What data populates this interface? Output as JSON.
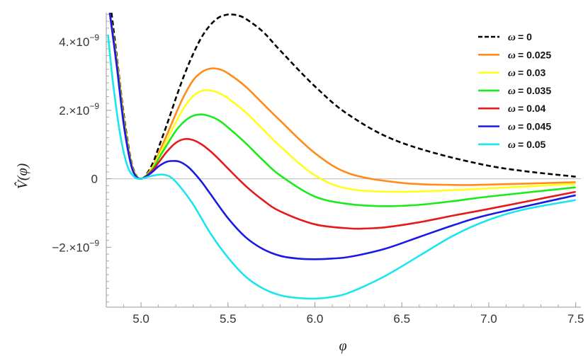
{
  "chart_data": {
    "type": "line",
    "title": "",
    "xlabel": "φ",
    "ylabel": "V̂(φ)",
    "xlim": [
      4.8,
      7.53
    ],
    "ylim": [
      -3.75e-09,
      4.85e-09
    ],
    "x_ticks": [
      {
        "value": 5.0,
        "label": "5.0"
      },
      {
        "value": 5.5,
        "label": "5.5"
      },
      {
        "value": 6.0,
        "label": "6.0"
      },
      {
        "value": 6.5,
        "label": "6.5"
      },
      {
        "value": 7.0,
        "label": "7.0"
      },
      {
        "value": 7.5,
        "label": "7.5"
      }
    ],
    "y_ticks": [
      {
        "value": 4e-09,
        "mantissa": "4.×10",
        "exponent": "−9"
      },
      {
        "value": 2e-09,
        "mantissa": "2.×10",
        "exponent": "−9"
      },
      {
        "value": 0,
        "mantissa": "0",
        "exponent": ""
      },
      {
        "value": -2e-09,
        "mantissa": "−2.×10",
        "exponent": "−9"
      }
    ],
    "grid": false,
    "legend_position": "top-right",
    "series": [
      {
        "name": "ω = 0",
        "symbol": "ω",
        "value": "= 0",
        "color": "#000000",
        "dashed": true,
        "x": [
          4.83,
          4.86,
          4.9,
          4.94,
          4.97,
          5.0,
          5.03,
          5.07,
          5.1,
          5.15,
          5.2,
          5.25,
          5.3,
          5.35,
          5.4,
          5.45,
          5.5,
          5.52,
          5.55,
          5.6,
          5.7,
          5.8,
          6.0,
          6.2,
          6.5,
          7.0,
          7.5
        ],
        "y": [
          4.85e-09,
          3.6e-09,
          1.9e-09,
          6e-10,
          1.2e-10,
          0,
          1.2e-10,
          4.8e-10,
          9e-10,
          1.6e-09,
          2.35e-09,
          3.05e-09,
          3.65e-09,
          4.15e-09,
          4.5e-09,
          4.72e-09,
          4.8e-09,
          4.8e-09,
          4.78e-09,
          4.68e-09,
          4.3e-09,
          3.75e-09,
          2.7e-09,
          1.85e-09,
          1.05e-09,
          3.8e-10,
          6e-11
        ]
      },
      {
        "name": "ω = 0.025",
        "symbol": "ω",
        "value": "= 0.025",
        "color": "#ff8c1a",
        "dashed": false,
        "x": [
          4.82,
          4.86,
          4.9,
          4.94,
          4.97,
          5.0,
          5.03,
          5.07,
          5.1,
          5.15,
          5.2,
          5.25,
          5.3,
          5.35,
          5.4,
          5.45,
          5.5,
          5.6,
          5.7,
          5.8,
          6.0,
          6.2,
          6.5,
          6.8,
          7.0,
          7.5
        ],
        "y": [
          4.85e-09,
          3.5e-09,
          1.8e-09,
          5.5e-10,
          1e-10,
          0,
          1e-10,
          3.8e-10,
          7.2e-10,
          1.3e-09,
          1.9e-09,
          2.45e-09,
          2.88e-09,
          3.12e-09,
          3.22e-09,
          3.2e-09,
          3.08e-09,
          2.7e-09,
          2.2e-09,
          1.7e-09,
          7.5e-10,
          1.5e-10,
          -1.2e-10,
          -1.8e-10,
          -1.7e-10,
          -1e-10
        ]
      },
      {
        "name": "ω = 0.03",
        "symbol": "ω",
        "value": "= 0.03",
        "color": "#ffff1a",
        "dashed": false,
        "x": [
          4.82,
          4.86,
          4.9,
          4.94,
          4.97,
          5.0,
          5.03,
          5.07,
          5.1,
          5.15,
          5.2,
          5.25,
          5.3,
          5.35,
          5.4,
          5.45,
          5.5,
          5.6,
          5.7,
          5.8,
          6.0,
          6.2,
          6.5,
          6.8,
          7.0,
          7.5
        ],
        "y": [
          4.85e-09,
          3.45e-09,
          1.75e-09,
          5.3e-10,
          1e-10,
          0,
          1e-10,
          3.5e-10,
          6.5e-10,
          1.15e-09,
          1.65e-09,
          2.1e-09,
          2.42e-09,
          2.57e-09,
          2.58e-09,
          2.5e-09,
          2.35e-09,
          1.95e-09,
          1.45e-09,
          9.5e-10,
          1e-10,
          -3e-10,
          -3.8e-10,
          -3.3e-10,
          -2.8e-10,
          -1.5e-10
        ]
      },
      {
        "name": "ω = 0.035",
        "symbol": "ω",
        "value": "= 0.035",
        "color": "#1aeb1a",
        "dashed": false,
        "x": [
          4.82,
          4.86,
          4.9,
          4.94,
          4.97,
          5.0,
          5.03,
          5.07,
          5.1,
          5.15,
          5.2,
          5.25,
          5.3,
          5.35,
          5.4,
          5.45,
          5.5,
          5.6,
          5.7,
          5.8,
          6.0,
          6.2,
          6.4,
          6.6,
          6.8,
          7.0,
          7.5
        ],
        "y": [
          4.85e-09,
          3.4e-09,
          1.7e-09,
          5e-10,
          9e-11,
          0,
          9e-11,
          3.1e-10,
          5.8e-10,
          1e-09,
          1.4e-09,
          1.68e-09,
          1.84e-09,
          1.88e-09,
          1.82e-09,
          1.7e-09,
          1.5e-09,
          1.05e-09,
          5.5e-10,
          1e-10,
          -5.2e-10,
          -7.4e-10,
          -8e-10,
          -7.6e-10,
          -6.5e-10,
          -5.2e-10,
          -2.5e-10
        ]
      },
      {
        "name": "ω = 0.04",
        "symbol": "ω",
        "value": "= 0.04",
        "color": "#e61a1a",
        "dashed": false,
        "x": [
          4.82,
          4.86,
          4.9,
          4.94,
          4.97,
          5.0,
          5.03,
          5.07,
          5.1,
          5.15,
          5.2,
          5.25,
          5.3,
          5.35,
          5.4,
          5.45,
          5.5,
          5.6,
          5.7,
          5.8,
          6.0,
          6.2,
          6.3,
          6.4,
          6.6,
          6.8,
          7.0,
          7.5
        ],
        "y": [
          4.85e-09,
          3.35e-09,
          1.65e-09,
          4.8e-10,
          8e-11,
          0,
          8e-11,
          2.7e-10,
          4.7e-10,
          8e-10,
          1.05e-09,
          1.16e-09,
          1.13e-09,
          1e-09,
          8e-10,
          5.6e-10,
          3e-10,
          -2e-10,
          -6.2e-10,
          -9.5e-10,
          -1.33e-09,
          -1.45e-09,
          -1.45e-09,
          -1.42e-09,
          -1.27e-09,
          -1.07e-09,
          -8.8e-10,
          -3.8e-10
        ]
      },
      {
        "name": "ω = 0.045",
        "symbol": "ω",
        "value": "= 0.045",
        "color": "#1a1ae6",
        "dashed": false,
        "x": [
          4.82,
          4.86,
          4.9,
          4.94,
          4.97,
          5.0,
          5.03,
          5.07,
          5.1,
          5.15,
          5.2,
          5.23,
          5.27,
          5.3,
          5.35,
          5.4,
          5.5,
          5.6,
          5.7,
          5.8,
          5.9,
          6.0,
          6.1,
          6.2,
          6.4,
          6.6,
          6.8,
          7.0,
          7.5
        ],
        "y": [
          4.85e-09,
          3.3e-09,
          1.6e-09,
          4.6e-10,
          7e-11,
          0,
          7e-11,
          2.2e-10,
          3.6e-10,
          5e-10,
          5.2e-10,
          4.8e-10,
          3.5e-10,
          2e-10,
          -1e-10,
          -4.5e-10,
          -1.15e-09,
          -1.7e-09,
          -2.05e-09,
          -2.25e-09,
          -2.33e-09,
          -2.35e-09,
          -2.33e-09,
          -2.28e-09,
          -2.05e-09,
          -1.7e-09,
          -1.35e-09,
          -1.05e-09,
          -4.8e-10
        ]
      },
      {
        "name": "ω = 0.05",
        "symbol": "ω",
        "value": "= 0.05",
        "color": "#1ae6f0",
        "dashed": false,
        "x": [
          4.81,
          4.84,
          4.88,
          4.92,
          4.96,
          5.0,
          5.05,
          5.1,
          5.13,
          5.17,
          5.22,
          5.3,
          5.4,
          5.5,
          5.6,
          5.7,
          5.8,
          5.9,
          6.0,
          6.1,
          6.2,
          6.4,
          6.6,
          6.8,
          7.0,
          7.2,
          7.5
        ],
        "y": [
          4.2e-09,
          2.75e-09,
          1.3e-09,
          4e-10,
          6e-11,
          0,
          7e-11,
          1.2e-10,
          1.2e-10,
          5e-11,
          -2e-10,
          -7.5e-10,
          -1.6e-09,
          -2.3e-09,
          -2.85e-09,
          -3.2e-09,
          -3.4e-09,
          -3.48e-09,
          -3.5e-09,
          -3.45e-09,
          -3.32e-09,
          -2.85e-09,
          -2.25e-09,
          -1.65e-09,
          -1.2e-09,
          -9e-10,
          -6.2e-10
        ]
      }
    ]
  }
}
